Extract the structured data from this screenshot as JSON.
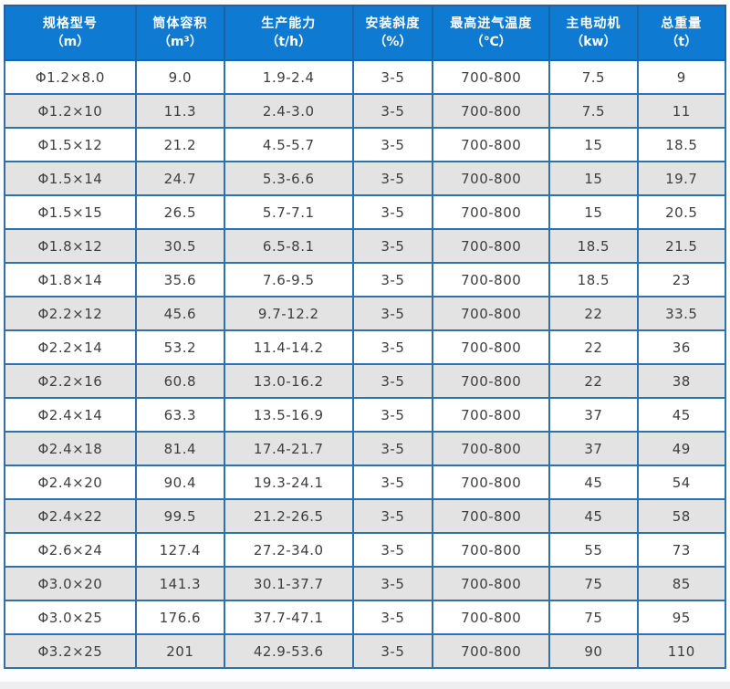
{
  "chart_data": {
    "type": "table",
    "columns": [
      {
        "name": "规格型号",
        "unit": "（m）"
      },
      {
        "name": "筒体容积",
        "unit": "（m³）"
      },
      {
        "name": "生产能力",
        "unit": "（t/h）"
      },
      {
        "name": "安装斜度",
        "unit": "（%）"
      },
      {
        "name": "最高进气温度",
        "unit": "（℃）"
      },
      {
        "name": "主电动机",
        "unit": "（kw）"
      },
      {
        "name": "总重量",
        "unit": "（t）"
      }
    ],
    "rows": [
      [
        "Φ1.2×8.0",
        "9.0",
        "1.9-2.4",
        "3-5",
        "700-800",
        "7.5",
        "9"
      ],
      [
        "Φ1.2×10",
        "11.3",
        "2.4-3.0",
        "3-5",
        "700-800",
        "7.5",
        "11"
      ],
      [
        "Φ1.5×12",
        "21.2",
        "4.5-5.7",
        "3-5",
        "700-800",
        "15",
        "18.5"
      ],
      [
        "Φ1.5×14",
        "24.7",
        "5.3-6.6",
        "3-5",
        "700-800",
        "15",
        "19.7"
      ],
      [
        "Φ1.5×15",
        "26.5",
        "5.7-7.1",
        "3-5",
        "700-800",
        "15",
        "20.5"
      ],
      [
        "Φ1.8×12",
        "30.5",
        "6.5-8.1",
        "3-5",
        "700-800",
        "18.5",
        "21.5"
      ],
      [
        "Φ1.8×14",
        "35.6",
        "7.6-9.5",
        "3-5",
        "700-800",
        "18.5",
        "23"
      ],
      [
        "Φ2.2×12",
        "45.6",
        "9.7-12.2",
        "3-5",
        "700-800",
        "22",
        "33.5"
      ],
      [
        "Φ2.2×14",
        "53.2",
        "11.4-14.2",
        "3-5",
        "700-800",
        "22",
        "36"
      ],
      [
        "Φ2.2×16",
        "60.8",
        "13.0-16.2",
        "3-5",
        "700-800",
        "22",
        "38"
      ],
      [
        "Φ2.4×14",
        "63.3",
        "13.5-16.9",
        "3-5",
        "700-800",
        "37",
        "45"
      ],
      [
        "Φ2.4×18",
        "81.4",
        "17.4-21.7",
        "3-5",
        "700-800",
        "37",
        "49"
      ],
      [
        "Φ2.4×20",
        "90.4",
        "19.3-24.1",
        "3-5",
        "700-800",
        "45",
        "54"
      ],
      [
        "Φ2.4×22",
        "99.5",
        "21.2-26.5",
        "3-5",
        "700-800",
        "45",
        "58"
      ],
      [
        "Φ2.6×24",
        "127.4",
        "27.2-34.0",
        "3-5",
        "700-800",
        "55",
        "73"
      ],
      [
        "Φ3.0×20",
        "141.3",
        "30.1-37.7",
        "3-5",
        "700-800",
        "75",
        "85"
      ],
      [
        "Φ3.0×25",
        "176.6",
        "37.7-47.1",
        "3-5",
        "700-800",
        "75",
        "95"
      ],
      [
        "Φ3.2×25",
        "201",
        "42.9-53.6",
        "3-5",
        "700-800",
        "90",
        "110"
      ]
    ],
    "colors": {
      "header_bg": "#0e7ad2",
      "header_text": "#ffffff",
      "grid_border": "#3070ab",
      "outer_border": "#26639c",
      "row_bg": "#ffffff",
      "row_alt_bg": "#e3e3e3",
      "cell_text": "#3e3e3e"
    }
  }
}
